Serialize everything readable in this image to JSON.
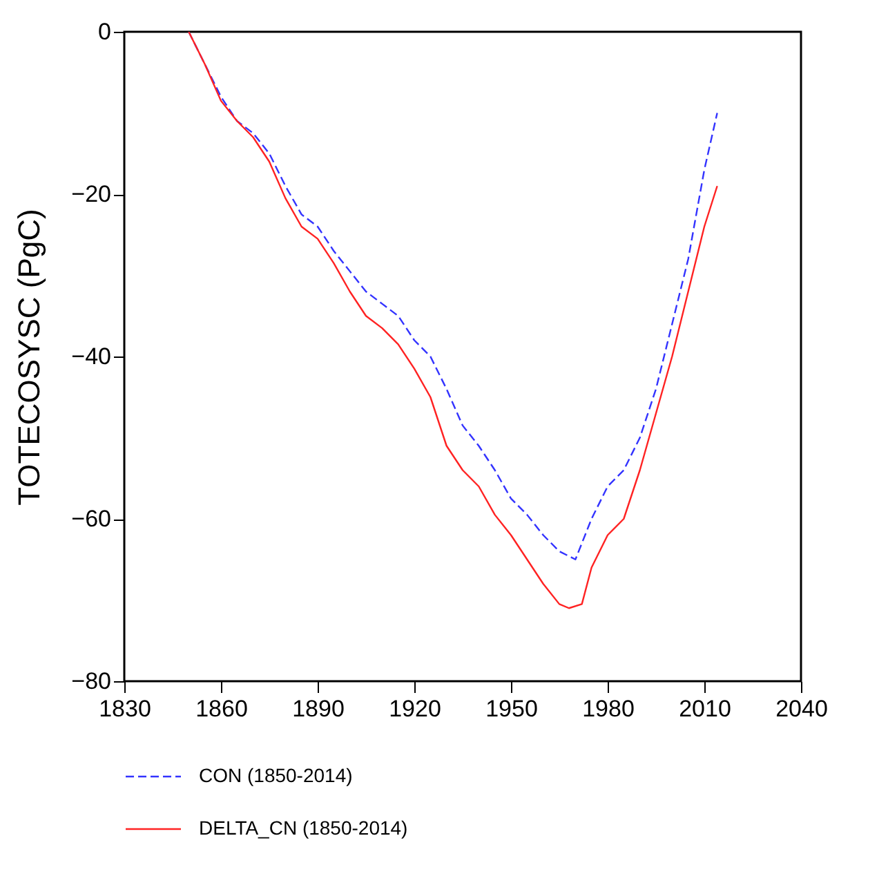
{
  "chart_data": {
    "type": "line",
    "ylabel": "TOTECOSYSC  (PgC)",
    "xlim": [
      1830,
      2040
    ],
    "xticks": [
      1830,
      1860,
      1890,
      1920,
      1950,
      1980,
      2010,
      2040
    ],
    "ylim": [
      -80,
      0
    ],
    "yticks": [
      -80,
      -60,
      -40,
      -20,
      0
    ],
    "grid": false,
    "legend": "bottom",
    "marker": "none",
    "series": [
      {
        "name": "CON (1850-2014)",
        "color": "#3333ff",
        "line_style": "dashed",
        "x": [
          1850,
          1855,
          1860,
          1865,
          1870,
          1875,
          1880,
          1885,
          1890,
          1895,
          1900,
          1905,
          1910,
          1915,
          1920,
          1925,
          1930,
          1935,
          1940,
          1945,
          1950,
          1955,
          1960,
          1965,
          1970,
          1975,
          1980,
          1985,
          1990,
          1995,
          2000,
          2005,
          2010,
          2014
        ],
        "values": [
          0,
          -4,
          -8,
          -11,
          -12.5,
          -15,
          -19,
          -22.5,
          -24,
          -27,
          -29.5,
          -32,
          -33.5,
          -35,
          -38,
          -40,
          -44,
          -48.5,
          -51,
          -54,
          -57.5,
          -59.5,
          -62,
          -64,
          -65,
          -60,
          -56,
          -54,
          -50,
          -44,
          -36,
          -28,
          -17,
          -10
        ]
      },
      {
        "name": "DELTA_CN (1850-2014)",
        "color": "#ff2222",
        "line_style": "solid",
        "x": [
          1850,
          1855,
          1860,
          1865,
          1870,
          1875,
          1880,
          1885,
          1890,
          1895,
          1900,
          1905,
          1910,
          1915,
          1920,
          1925,
          1930,
          1935,
          1940,
          1945,
          1950,
          1955,
          1960,
          1965,
          1968,
          1972,
          1975,
          1980,
          1985,
          1990,
          1995,
          2000,
          2005,
          2010,
          2014
        ],
        "values": [
          0,
          -4,
          -8.5,
          -11,
          -13,
          -16,
          -20.5,
          -24,
          -25.5,
          -28.5,
          -32,
          -35,
          -36.5,
          -38.5,
          -41.5,
          -45,
          -51,
          -54,
          -56,
          -59.5,
          -62,
          -65,
          -68,
          -70.5,
          -71,
          -70.5,
          -66,
          -62,
          -60,
          -54,
          -47,
          -40,
          -32,
          -24,
          -19
        ]
      }
    ]
  }
}
